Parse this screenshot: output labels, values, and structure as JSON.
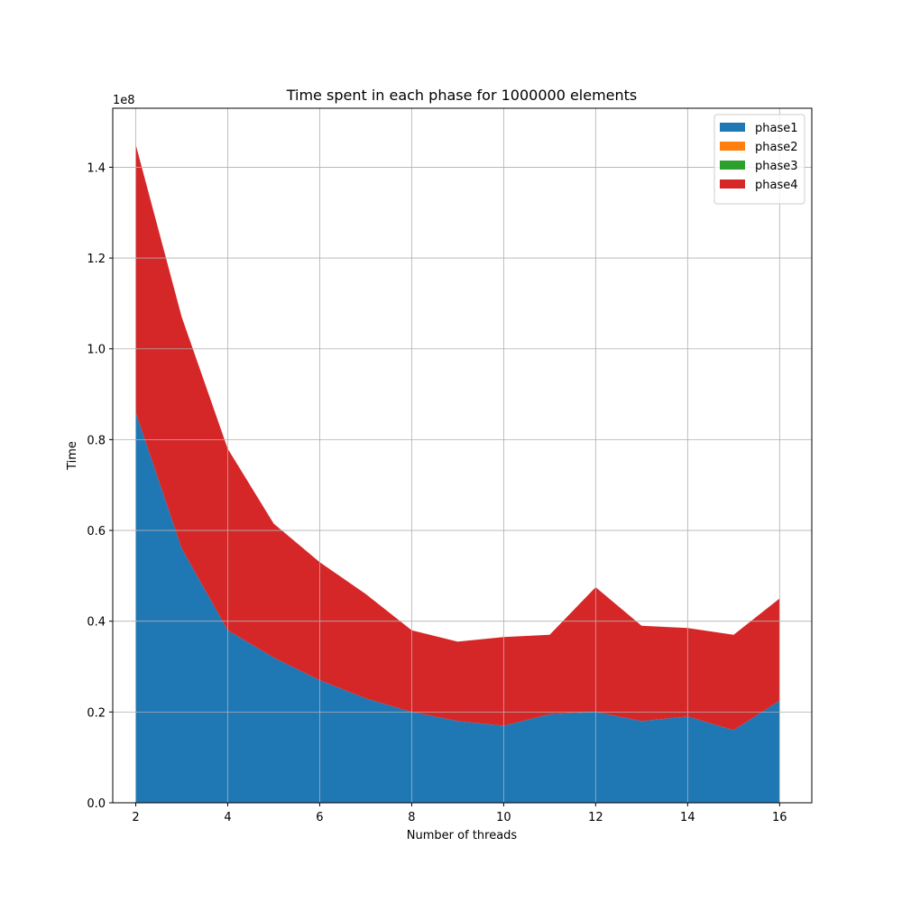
{
  "chart_data": {
    "type": "area",
    "stacked": true,
    "title": "Time spent in each phase for 1000000 elements",
    "xlabel": "Number of threads",
    "ylabel": "Time",
    "y_offset_label": "1e8",
    "x": [
      2,
      3,
      4,
      5,
      6,
      7,
      8,
      9,
      10,
      11,
      12,
      13,
      14,
      15,
      16
    ],
    "xlim": [
      1.5,
      16.7
    ],
    "ylim": [
      0,
      1.53
    ],
    "x_ticks": [
      "2",
      "4",
      "6",
      "8",
      "10",
      "12",
      "14",
      "16"
    ],
    "y_ticks": [
      "0.0",
      "0.2",
      "0.4",
      "0.6",
      "0.8",
      "1.0",
      "1.2",
      "1.4"
    ],
    "grid": true,
    "legend_position": "top-right",
    "series": [
      {
        "name": "phase1",
        "color": "#1f77b4",
        "values": [
          0.86,
          0.56,
          0.38,
          0.32,
          0.27,
          0.23,
          0.2,
          0.18,
          0.17,
          0.195,
          0.2,
          0.18,
          0.19,
          0.16,
          0.225
        ]
      },
      {
        "name": "phase2",
        "color": "#ff7f0e",
        "values": [
          0,
          0,
          0,
          0,
          0,
          0,
          0,
          0,
          0,
          0,
          0,
          0,
          0,
          0,
          0
        ]
      },
      {
        "name": "phase3",
        "color": "#2ca02c",
        "values": [
          0,
          0,
          0,
          0,
          0,
          0,
          0,
          0,
          0,
          0,
          0,
          0,
          0,
          0,
          0
        ]
      },
      {
        "name": "phase4",
        "color": "#d62728",
        "values": [
          0.59,
          0.51,
          0.4,
          0.295,
          0.26,
          0.23,
          0.18,
          0.175,
          0.195,
          0.175,
          0.275,
          0.21,
          0.195,
          0.21,
          0.225
        ]
      }
    ]
  }
}
